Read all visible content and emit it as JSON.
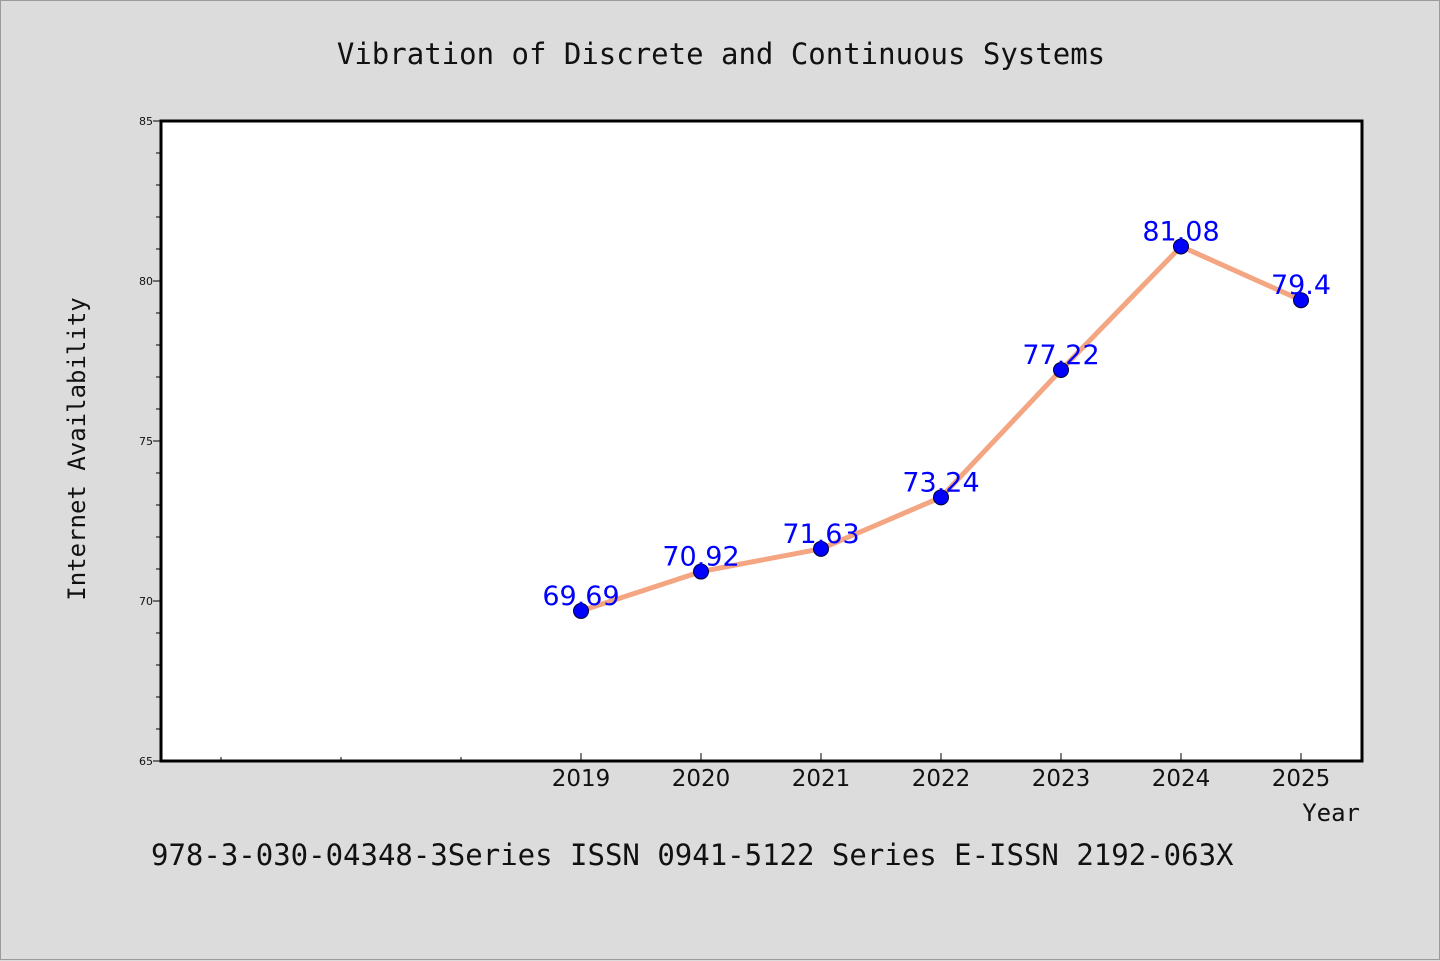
{
  "chart_data": {
    "type": "line",
    "title": "Vibration of Discrete and Continuous Systems",
    "xlabel": "Year",
    "ylabel": "Internet Availability",
    "categories": [
      "2019",
      "2020",
      "2021",
      "2022",
      "2023",
      "2024",
      "2025"
    ],
    "values": [
      69.69,
      70.92,
      71.63,
      73.24,
      77.22,
      81.08,
      79.4
    ],
    "data_labels": [
      "69.69",
      "70.92",
      "71.63",
      "73.24",
      "77.22",
      "81.08",
      "79.4"
    ],
    "ylim": [
      65,
      85
    ],
    "yticks": [
      65,
      70,
      75,
      80,
      85
    ],
    "grid": false,
    "colors": {
      "line": "#f4a582",
      "marker": "#0000ff",
      "label": "#0000ff"
    }
  },
  "footer": "978-3-030-04348-3Series ISSN 0941-5122 Series E-ISSN 2192-063X"
}
